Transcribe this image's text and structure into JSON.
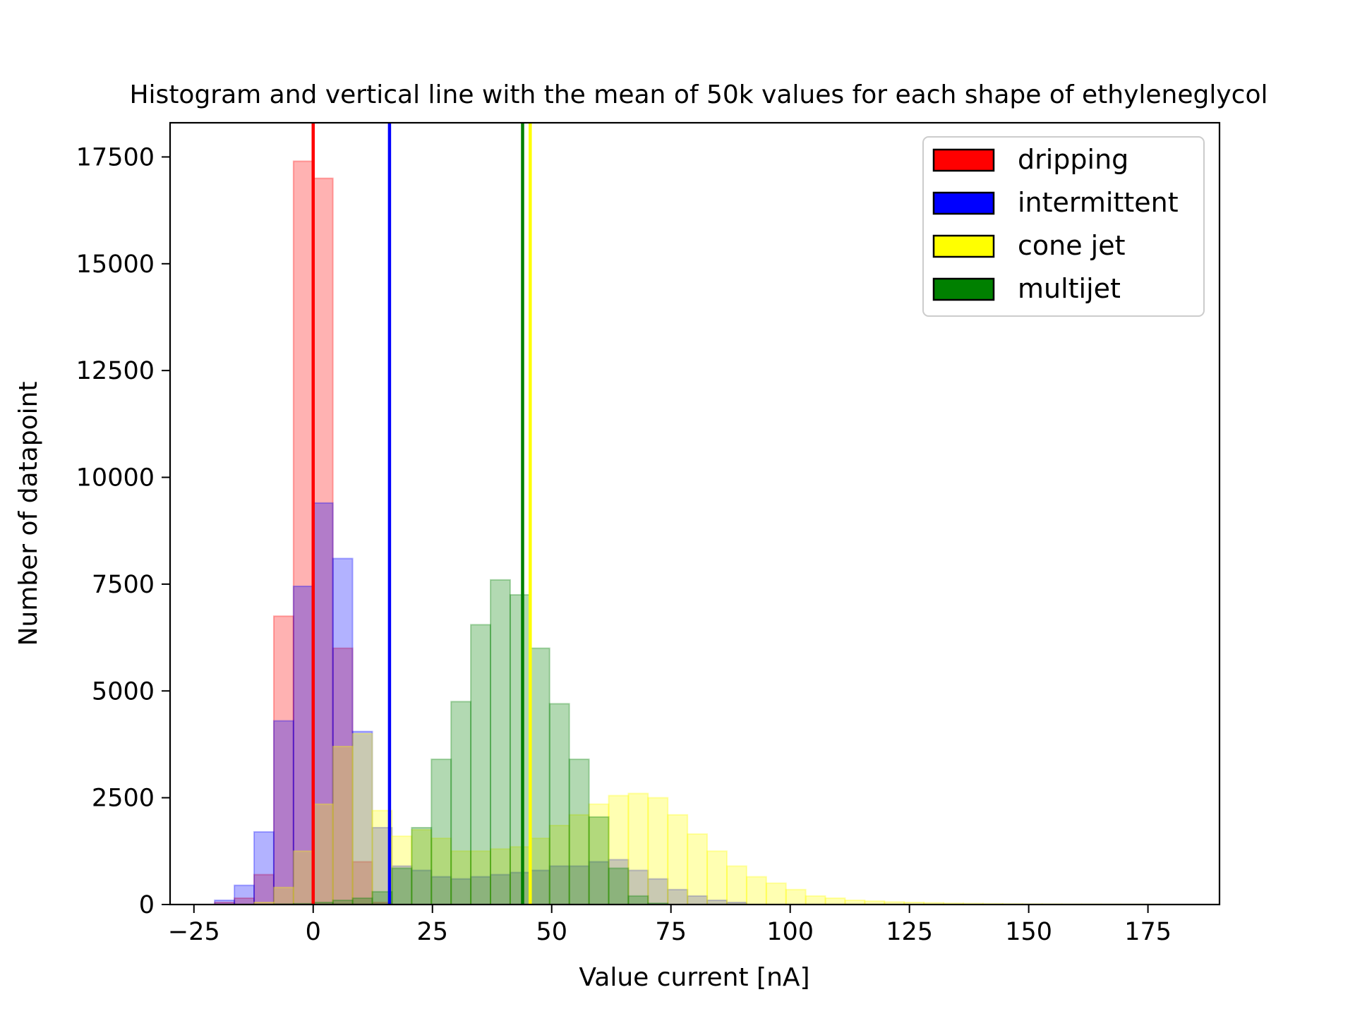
{
  "chart_data": {
    "type": "bar",
    "title": "Histogram and vertical line with the mean of 50k values for each shape of ethyleneglycol",
    "xlabel": "Value current [nA]",
    "ylabel": "Number of datapoint",
    "xlim": [
      -30,
      190
    ],
    "ylim": [
      0,
      18300
    ],
    "xticks": [
      -25,
      0,
      25,
      50,
      75,
      100,
      125,
      150,
      175
    ],
    "xtick_labels": [
      "−25",
      "0",
      "25",
      "50",
      "75",
      "100",
      "125",
      "150",
      "175"
    ],
    "yticks": [
      0,
      2500,
      5000,
      7500,
      10000,
      12500,
      15000,
      17500
    ],
    "ytick_labels": [
      "0",
      "2500",
      "5000",
      "7500",
      "10000",
      "12500",
      "15000",
      "17500"
    ],
    "grid": false,
    "legend_position": "top-right",
    "series": [
      {
        "name": "dripping",
        "color": "#ff0000",
        "mean": 0.0,
        "bin_width": 4.13,
        "bins_start": [
          -20.65,
          -16.52,
          -12.39,
          -8.26,
          -4.13,
          0.0,
          4.13,
          8.26,
          12.39
        ],
        "values": [
          50,
          150,
          700,
          6750,
          17400,
          17000,
          6000,
          1000,
          50
        ]
      },
      {
        "name": "intermittent",
        "color": "#0000ff",
        "mean": 16.0,
        "bin_width": 4.13,
        "bins_start": [
          -20.65,
          -16.52,
          -12.39,
          -8.26,
          -4.13,
          0.0,
          4.13,
          8.26,
          12.39,
          16.52,
          20.65,
          24.78,
          28.91,
          33.04,
          37.17,
          41.3,
          45.43,
          49.56,
          53.69,
          57.82,
          61.95,
          66.08,
          70.21,
          74.34,
          78.47,
          82.6,
          86.73
        ],
        "values": [
          100,
          450,
          1700,
          4300,
          7450,
          9400,
          8100,
          4050,
          1800,
          900,
          800,
          650,
          600,
          650,
          700,
          750,
          800,
          900,
          900,
          1000,
          1050,
          800,
          600,
          350,
          200,
          100,
          50
        ]
      },
      {
        "name": "cone jet",
        "color": "#ffff00",
        "mean": 45.5,
        "bin_width": 4.13,
        "bins_start": [
          -12.39,
          -8.26,
          -4.13,
          0.0,
          4.13,
          8.26,
          12.39,
          16.52,
          20.65,
          24.78,
          28.91,
          33.04,
          37.17,
          41.3,
          45.43,
          49.56,
          53.69,
          57.82,
          61.95,
          66.08,
          70.21,
          74.34,
          78.47,
          82.6,
          86.73,
          90.86,
          94.99,
          99.12,
          103.25,
          107.38,
          111.51,
          115.64,
          119.77,
          123.9,
          128.03,
          132.16,
          136.29,
          140.42,
          144.55,
          148.68,
          152.81,
          156.94,
          161.07,
          165.2,
          169.33,
          173.46
        ],
        "values": [
          50,
          400,
          1250,
          2350,
          3700,
          4000,
          2200,
          1600,
          1750,
          1550,
          1250,
          1250,
          1300,
          1350,
          1550,
          1850,
          2100,
          2350,
          2550,
          2600,
          2500,
          2100,
          1650,
          1250,
          900,
          650,
          500,
          350,
          200,
          150,
          100,
          80,
          60,
          50,
          40,
          30,
          25,
          20,
          15,
          12,
          10,
          8,
          8,
          6,
          5,
          5
        ]
      },
      {
        "name": "multijet",
        "color": "#008000",
        "mean": 43.9,
        "bin_width": 4.13,
        "bins_start": [
          -8.26,
          -4.13,
          0.0,
          4.13,
          8.26,
          12.39,
          16.52,
          20.65,
          24.78,
          28.91,
          33.04,
          37.17,
          41.3,
          45.43,
          49.56,
          53.69,
          57.82,
          61.95,
          66.08,
          70.21
        ],
        "values": [
          10,
          20,
          50,
          100,
          150,
          300,
          850,
          1800,
          3400,
          4750,
          6550,
          7600,
          7250,
          6000,
          4700,
          3400,
          2050,
          850,
          200,
          30
        ]
      }
    ]
  }
}
